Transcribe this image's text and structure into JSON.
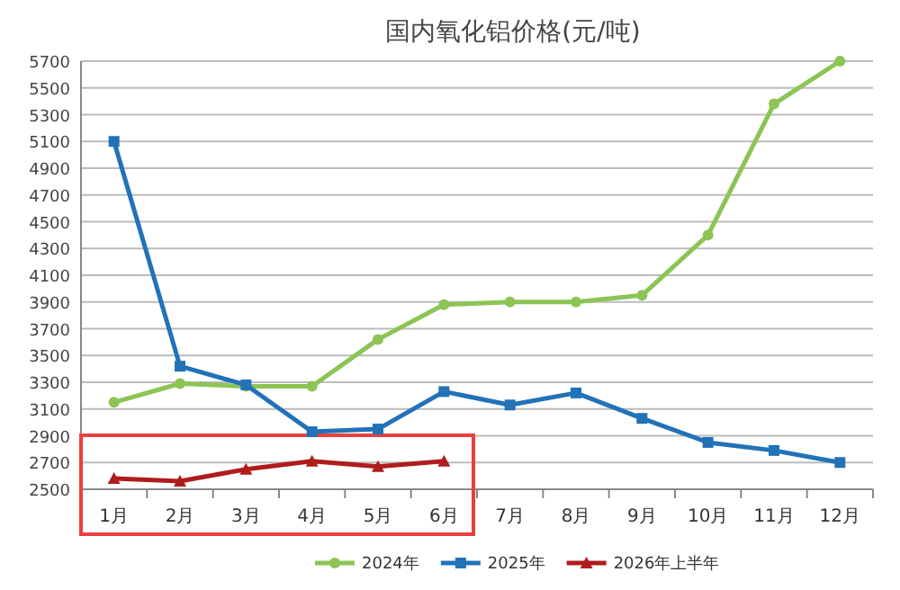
{
  "chart_data": {
    "type": "line",
    "title": "国内氧化铝价格(元/吨)",
    "categories": [
      "1月",
      "2月",
      "3月",
      "4月",
      "5月",
      "6月",
      "7月",
      "8月",
      "9月",
      "10月",
      "11月",
      "12月"
    ],
    "series": [
      {
        "name": "2024年",
        "color": "#8cc455",
        "marker": "circle",
        "values": [
          3150,
          3290,
          3270,
          3270,
          3620,
          3880,
          3900,
          3900,
          3950,
          4400,
          5380,
          5700
        ]
      },
      {
        "name": "2025年",
        "color": "#2272b8",
        "marker": "square",
        "values": [
          5100,
          3420,
          3280,
          2930,
          2950,
          3230,
          3130,
          3220,
          3030,
          2850,
          2790,
          2700
        ]
      },
      {
        "name": "2026年上半年",
        "color": "#b01c1c",
        "marker": "triangle",
        "values": [
          2580,
          2560,
          2650,
          2710,
          2670,
          2710,
          null,
          null,
          null,
          null,
          null,
          null
        ]
      }
    ],
    "ylim": [
      2500,
      5700
    ],
    "yticks": [
      2500,
      2700,
      2900,
      3100,
      3300,
      3500,
      3700,
      3900,
      4100,
      4300,
      4500,
      4700,
      4900,
      5100,
      5300,
      5500,
      5700
    ],
    "grid": "y",
    "legend": "bottom",
    "line_style": "solid"
  }
}
